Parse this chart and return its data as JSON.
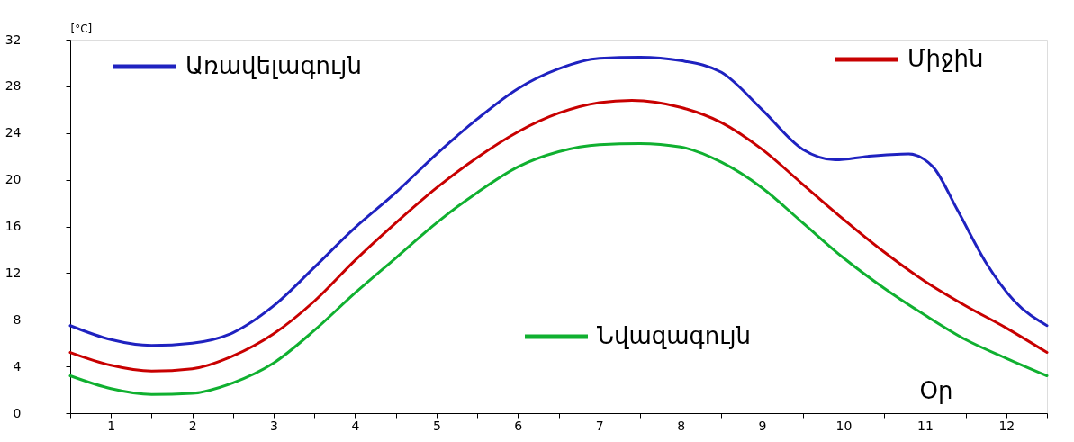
{
  "chart_data": {
    "type": "line",
    "xlabel": "Օր",
    "ylabel": "[°C]",
    "xlim": [
      0,
      12
    ],
    "ylim": [
      0,
      32
    ],
    "yticks": [
      0,
      4,
      8,
      12,
      16,
      20,
      24,
      28,
      32
    ],
    "xticks": [
      {
        "value": 0,
        "label": null
      },
      {
        "value": 0.5,
        "label": "1"
      },
      {
        "value": 1,
        "label": null
      },
      {
        "value": 1.5,
        "label": "2"
      },
      {
        "value": 2,
        "label": null
      },
      {
        "value": 2.5,
        "label": "3"
      },
      {
        "value": 3,
        "label": null
      },
      {
        "value": 3.5,
        "label": "4"
      },
      {
        "value": 4,
        "label": null
      },
      {
        "value": 4.5,
        "label": "5"
      },
      {
        "value": 5,
        "label": null
      },
      {
        "value": 5.5,
        "label": "6"
      },
      {
        "value": 6,
        "label": null
      },
      {
        "value": 6.5,
        "label": "7"
      },
      {
        "value": 7,
        "label": null
      },
      {
        "value": 7.5,
        "label": "8"
      },
      {
        "value": 8,
        "label": null
      },
      {
        "value": 8.5,
        "label": "9"
      },
      {
        "value": 9,
        "label": null
      },
      {
        "value": 9.5,
        "label": "10"
      },
      {
        "value": 10,
        "label": null
      },
      {
        "value": 10.5,
        "label": "11"
      },
      {
        "value": 11,
        "label": null
      },
      {
        "value": 11.5,
        "label": "12"
      },
      {
        "value": 12,
        "label": null
      }
    ],
    "grid": false,
    "legend": "top",
    "marker": "none",
    "line_style": "solid",
    "series": [
      {
        "name": "Առավելագույն",
        "color": "#1f22c0",
        "x": [
          0,
          0.5,
          1,
          1.5,
          2,
          2.5,
          3,
          3.5,
          4,
          4.5,
          5,
          5.5,
          6,
          6.5,
          7,
          7.5,
          8,
          8.5,
          9,
          9.4,
          9.8,
          10.3,
          10.6,
          10.9,
          11.25,
          11.6,
          12
        ],
        "values": [
          7.5,
          6.3,
          5.8,
          6.0,
          6.9,
          9.2,
          12.5,
          15.9,
          18.9,
          22.2,
          25.2,
          27.8,
          29.5,
          30.4,
          30.5,
          30.2,
          29.2,
          26.0,
          22.6,
          21.7,
          22.0,
          22.2,
          21.1,
          17.4,
          12.9,
          9.6,
          7.5
        ]
      },
      {
        "name": "Միջին",
        "color": "#c80000",
        "x": [
          0,
          0.5,
          1,
          1.5,
          2,
          2.5,
          3,
          3.5,
          4,
          4.5,
          5,
          5.5,
          6,
          6.5,
          6.9,
          7.5,
          8,
          8.5,
          9,
          9.5,
          10,
          10.5,
          11,
          11.5,
          12
        ],
        "values": [
          5.2,
          4.1,
          3.6,
          3.8,
          4.9,
          6.8,
          9.6,
          13.1,
          16.3,
          19.3,
          21.9,
          24.1,
          25.7,
          26.6,
          26.8,
          26.2,
          24.9,
          22.6,
          19.6,
          16.6,
          13.8,
          11.3,
          9.2,
          7.3,
          5.2
        ]
      },
      {
        "name": "Նվազագույն",
        "color": "#10b030",
        "x": [
          0,
          0.5,
          1,
          1.5,
          2,
          2.5,
          3,
          3.5,
          4,
          4.5,
          5,
          5.5,
          6,
          6.5,
          7,
          7.5,
          8,
          8.5,
          9,
          9.5,
          10,
          10.5,
          11,
          11.5,
          12
        ],
        "values": [
          3.2,
          2.1,
          1.6,
          1.7,
          2.6,
          4.3,
          7.1,
          10.3,
          13.3,
          16.3,
          18.9,
          21.1,
          22.4,
          23.0,
          23.1,
          22.8,
          21.5,
          19.3,
          16.3,
          13.3,
          10.7,
          8.4,
          6.3,
          4.7,
          3.2
        ]
      }
    ]
  }
}
